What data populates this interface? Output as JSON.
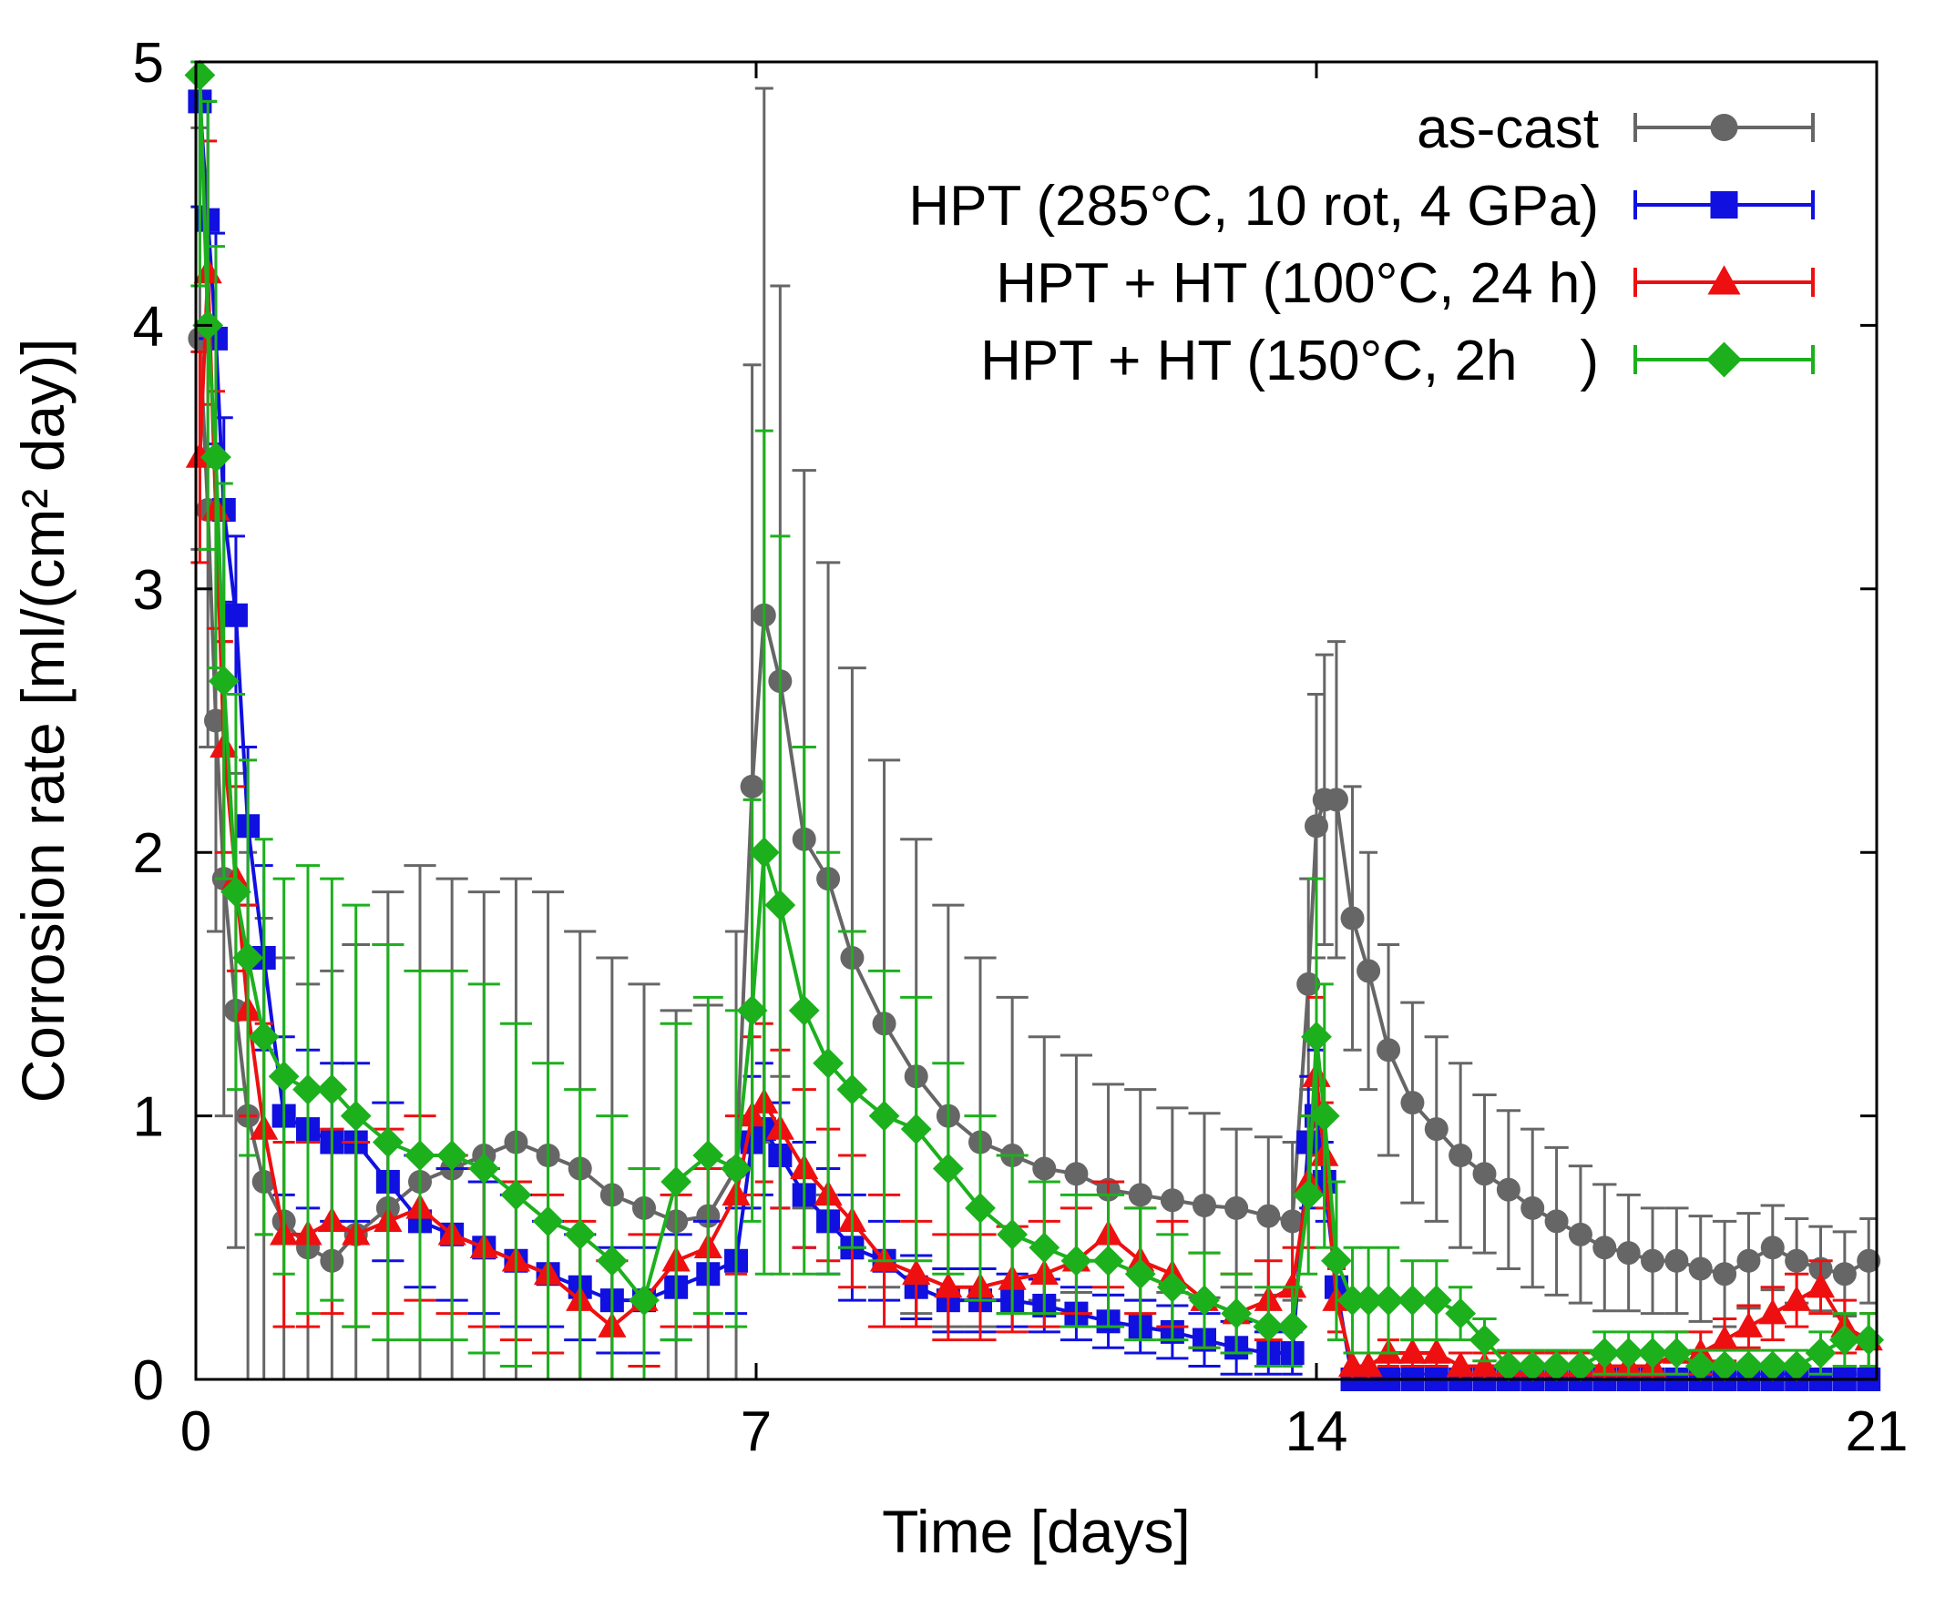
{
  "chart_data": {
    "type": "line",
    "title": "",
    "xlabel": "Time [days]",
    "ylabel": "Corrosion rate [ml/(cm² day)]",
    "xlim": [
      0,
      21
    ],
    "ylim": [
      0,
      5
    ],
    "xticks": [
      0,
      7,
      14,
      21
    ],
    "xtick_labels": [
      "0",
      "7",
      "14",
      "21"
    ],
    "yticks": [
      0,
      1,
      2,
      3,
      4,
      5
    ],
    "ytick_labels": [
      "0",
      "1",
      "2",
      "3",
      "4",
      "5"
    ],
    "grid": false,
    "legend_position": "top-right",
    "series": [
      {
        "name": "as-cast",
        "color": "#666666",
        "marker": "circle",
        "x": [
          0.05,
          0.15,
          0.25,
          0.35,
          0.5,
          0.65,
          0.85,
          1.1,
          1.4,
          1.7,
          2.0,
          2.4,
          2.8,
          3.2,
          3.6,
          4.0,
          4.4,
          4.8,
          5.2,
          5.6,
          6.0,
          6.4,
          6.75,
          6.95,
          7.1,
          7.3,
          7.6,
          7.9,
          8.2,
          8.6,
          9.0,
          9.4,
          9.8,
          10.2,
          10.6,
          11.0,
          11.4,
          11.8,
          12.2,
          12.6,
          13.0,
          13.4,
          13.7,
          13.9,
          14.0,
          14.1,
          14.25,
          14.45,
          14.65,
          14.9,
          15.2,
          15.5,
          15.8,
          16.1,
          16.4,
          16.7,
          17.0,
          17.3,
          17.6,
          17.9,
          18.2,
          18.5,
          18.8,
          19.1,
          19.4,
          19.7,
          20.0,
          20.3,
          20.6,
          20.9
        ],
        "y": [
          3.95,
          3.3,
          2.5,
          1.9,
          1.4,
          1.0,
          0.75,
          0.6,
          0.5,
          0.45,
          0.55,
          0.65,
          0.75,
          0.8,
          0.85,
          0.9,
          0.85,
          0.8,
          0.7,
          0.65,
          0.6,
          0.62,
          0.8,
          2.25,
          2.9,
          2.65,
          2.05,
          1.9,
          1.6,
          1.35,
          1.15,
          1.0,
          0.9,
          0.85,
          0.8,
          0.78,
          0.72,
          0.7,
          0.68,
          0.66,
          0.65,
          0.62,
          0.6,
          1.5,
          2.1,
          2.2,
          2.2,
          1.75,
          1.55,
          1.25,
          1.05,
          0.95,
          0.85,
          0.78,
          0.72,
          0.65,
          0.6,
          0.55,
          0.5,
          0.48,
          0.45,
          0.45,
          0.42,
          0.4,
          0.45,
          0.5,
          0.45,
          0.42,
          0.4,
          0.45
        ],
        "yerr": [
          0.8,
          0.9,
          0.8,
          0.9,
          0.9,
          1.0,
          1.0,
          1.0,
          1.0,
          1.1,
          1.1,
          1.2,
          1.2,
          1.1,
          1.0,
          1.0,
          1.0,
          0.9,
          0.9,
          0.85,
          0.8,
          0.8,
          0.9,
          1.6,
          2.0,
          1.5,
          1.4,
          1.2,
          1.1,
          1.0,
          0.9,
          0.8,
          0.7,
          0.6,
          0.5,
          0.45,
          0.4,
          0.4,
          0.35,
          0.35,
          0.3,
          0.3,
          0.3,
          0.4,
          0.5,
          0.55,
          0.6,
          0.5,
          0.45,
          0.4,
          0.38,
          0.35,
          0.35,
          0.3,
          0.3,
          0.3,
          0.28,
          0.26,
          0.24,
          0.22,
          0.2,
          0.2,
          0.2,
          0.2,
          0.18,
          0.16,
          0.16,
          0.16,
          0.16,
          0.16
        ]
      },
      {
        "name": "HPT (285°C, 10 rot, 4 GPa)",
        "color": "#1010e0",
        "marker": "square",
        "x": [
          0.05,
          0.15,
          0.25,
          0.35,
          0.5,
          0.65,
          0.85,
          1.1,
          1.4,
          1.7,
          2.0,
          2.4,
          2.8,
          3.2,
          3.6,
          4.0,
          4.4,
          4.8,
          5.2,
          5.6,
          6.0,
          6.4,
          6.75,
          6.95,
          7.1,
          7.3,
          7.6,
          7.9,
          8.2,
          8.6,
          9.0,
          9.4,
          9.8,
          10.2,
          10.6,
          11.0,
          11.4,
          11.8,
          12.2,
          12.6,
          13.0,
          13.4,
          13.7,
          13.9,
          14.0,
          14.1,
          14.25,
          14.45,
          14.65,
          14.9,
          15.2,
          15.5,
          15.8,
          16.1,
          16.4,
          16.7,
          17.0,
          17.3,
          17.6,
          17.9,
          18.2,
          18.5,
          18.8,
          19.1,
          19.4,
          19.7,
          20.0,
          20.3,
          20.6,
          20.9
        ],
        "y": [
          4.85,
          4.4,
          3.95,
          3.3,
          2.9,
          2.1,
          1.6,
          1.0,
          0.95,
          0.9,
          0.9,
          0.75,
          0.6,
          0.55,
          0.5,
          0.45,
          0.4,
          0.35,
          0.3,
          0.3,
          0.35,
          0.4,
          0.45,
          0.9,
          0.95,
          0.85,
          0.7,
          0.6,
          0.5,
          0.45,
          0.35,
          0.3,
          0.3,
          0.3,
          0.28,
          0.25,
          0.22,
          0.2,
          0.18,
          0.15,
          0.12,
          0.1,
          0.1,
          0.9,
          1.0,
          0.75,
          0.35,
          0.0,
          0.0,
          0.0,
          0.0,
          0.0,
          0.0,
          0.0,
          0.0,
          0.0,
          0.0,
          0.0,
          0.0,
          0.0,
          0.0,
          0.0,
          0.0,
          0.0,
          0.0,
          0.0,
          0.0,
          0.0,
          0.0,
          0.0
        ],
        "yerr": [
          0.4,
          0.45,
          0.4,
          0.35,
          0.3,
          0.3,
          0.35,
          0.3,
          0.3,
          0.3,
          0.3,
          0.3,
          0.25,
          0.25,
          0.25,
          0.25,
          0.2,
          0.2,
          0.2,
          0.2,
          0.2,
          0.2,
          0.2,
          0.25,
          0.25,
          0.2,
          0.2,
          0.2,
          0.2,
          0.15,
          0.12,
          0.12,
          0.12,
          0.1,
          0.1,
          0.1,
          0.1,
          0.1,
          0.1,
          0.1,
          0.1,
          0.08,
          0.08,
          0.25,
          0.25,
          0.15,
          0.08,
          0.02,
          0.02,
          0.02,
          0.02,
          0.02,
          0.02,
          0.02,
          0.02,
          0.02,
          0.02,
          0.02,
          0.02,
          0.02,
          0.02,
          0.02,
          0.02,
          0.02,
          0.02,
          0.02,
          0.02,
          0.02,
          0.02,
          0.02
        ]
      },
      {
        "name": "HPT + HT (100°C, 24 h)",
        "color": "#ee1010",
        "marker": "triangle",
        "x": [
          0.05,
          0.15,
          0.25,
          0.35,
          0.5,
          0.65,
          0.85,
          1.1,
          1.4,
          1.7,
          2.0,
          2.4,
          2.8,
          3.2,
          3.6,
          4.0,
          4.4,
          4.8,
          5.2,
          5.6,
          6.0,
          6.4,
          6.75,
          6.95,
          7.1,
          7.3,
          7.6,
          7.9,
          8.2,
          8.6,
          9.0,
          9.4,
          9.8,
          10.2,
          10.6,
          11.0,
          11.4,
          11.8,
          12.2,
          12.6,
          13.0,
          13.4,
          13.7,
          13.9,
          14.0,
          14.1,
          14.25,
          14.45,
          14.65,
          14.9,
          15.2,
          15.5,
          15.8,
          16.1,
          16.4,
          16.7,
          17.0,
          17.3,
          17.6,
          17.9,
          18.2,
          18.5,
          18.8,
          19.1,
          19.4,
          19.7,
          20.0,
          20.3,
          20.6,
          20.9
        ],
        "y": [
          3.5,
          4.2,
          3.3,
          2.4,
          1.9,
          1.4,
          0.95,
          0.55,
          0.55,
          0.6,
          0.55,
          0.6,
          0.65,
          0.55,
          0.5,
          0.45,
          0.4,
          0.3,
          0.2,
          0.3,
          0.45,
          0.5,
          0.7,
          1.0,
          1.05,
          0.95,
          0.8,
          0.7,
          0.6,
          0.45,
          0.4,
          0.35,
          0.35,
          0.38,
          0.4,
          0.45,
          0.55,
          0.45,
          0.4,
          0.3,
          0.25,
          0.3,
          0.35,
          0.75,
          1.15,
          0.85,
          0.3,
          0.05,
          0.05,
          0.1,
          0.1,
          0.1,
          0.05,
          0.05,
          0.05,
          0.05,
          0.05,
          0.05,
          0.05,
          0.05,
          0.05,
          0.1,
          0.1,
          0.15,
          0.2,
          0.25,
          0.3,
          0.35,
          0.2,
          0.15
        ],
        "yerr": [
          0.4,
          0.5,
          0.45,
          0.4,
          0.35,
          0.4,
          0.4,
          0.35,
          0.35,
          0.35,
          0.35,
          0.35,
          0.35,
          0.3,
          0.3,
          0.3,
          0.3,
          0.3,
          0.25,
          0.25,
          0.25,
          0.3,
          0.3,
          0.3,
          0.3,
          0.3,
          0.3,
          0.25,
          0.25,
          0.25,
          0.2,
          0.2,
          0.2,
          0.2,
          0.2,
          0.2,
          0.2,
          0.2,
          0.2,
          0.18,
          0.15,
          0.15,
          0.15,
          0.25,
          0.3,
          0.2,
          0.12,
          0.05,
          0.05,
          0.05,
          0.05,
          0.05,
          0.05,
          0.05,
          0.05,
          0.05,
          0.05,
          0.05,
          0.05,
          0.05,
          0.05,
          0.08,
          0.08,
          0.08,
          0.08,
          0.1,
          0.1,
          0.1,
          0.1,
          0.1
        ]
      },
      {
        "name": "HPT + HT (150°C, 2h    )",
        "color": "#1db01d",
        "marker": "diamond",
        "x": [
          0.05,
          0.15,
          0.25,
          0.35,
          0.5,
          0.65,
          0.85,
          1.1,
          1.4,
          1.7,
          2.0,
          2.4,
          2.8,
          3.2,
          3.6,
          4.0,
          4.4,
          4.8,
          5.2,
          5.6,
          6.0,
          6.4,
          6.75,
          6.95,
          7.1,
          7.3,
          7.6,
          7.9,
          8.2,
          8.6,
          9.0,
          9.4,
          9.8,
          10.2,
          10.6,
          11.0,
          11.4,
          11.8,
          12.2,
          12.6,
          13.0,
          13.4,
          13.7,
          13.9,
          14.0,
          14.1,
          14.25,
          14.45,
          14.65,
          14.9,
          15.2,
          15.5,
          15.8,
          16.1,
          16.4,
          16.7,
          17.0,
          17.3,
          17.6,
          17.9,
          18.2,
          18.5,
          18.8,
          19.1,
          19.4,
          19.7,
          20.0,
          20.3,
          20.6,
          20.9
        ],
        "y": [
          4.95,
          4.0,
          3.5,
          2.65,
          1.85,
          1.6,
          1.3,
          1.15,
          1.1,
          1.1,
          1.0,
          0.9,
          0.85,
          0.85,
          0.8,
          0.7,
          0.6,
          0.55,
          0.45,
          0.3,
          0.75,
          0.85,
          0.8,
          1.4,
          2.0,
          1.8,
          1.4,
          1.2,
          1.1,
          1.0,
          0.95,
          0.8,
          0.65,
          0.55,
          0.5,
          0.45,
          0.45,
          0.4,
          0.35,
          0.3,
          0.25,
          0.2,
          0.2,
          0.7,
          1.3,
          1.0,
          0.45,
          0.3,
          0.3,
          0.3,
          0.3,
          0.3,
          0.25,
          0.15,
          0.05,
          0.05,
          0.05,
          0.05,
          0.1,
          0.1,
          0.1,
          0.1,
          0.05,
          0.05,
          0.05,
          0.05,
          0.05,
          0.1,
          0.15,
          0.15
        ],
        "yerr": [
          0.8,
          0.85,
          0.8,
          0.75,
          0.75,
          0.75,
          0.75,
          0.75,
          0.85,
          0.8,
          0.8,
          0.75,
          0.7,
          0.7,
          0.7,
          0.65,
          0.6,
          0.55,
          0.55,
          0.5,
          0.6,
          0.6,
          0.6,
          0.8,
          1.6,
          1.4,
          1.0,
          0.8,
          0.6,
          0.55,
          0.5,
          0.4,
          0.35,
          0.3,
          0.25,
          0.25,
          0.25,
          0.25,
          0.2,
          0.18,
          0.15,
          0.15,
          0.15,
          0.3,
          0.6,
          0.5,
          0.3,
          0.2,
          0.2,
          0.2,
          0.15,
          0.15,
          0.1,
          0.08,
          0.06,
          0.06,
          0.06,
          0.06,
          0.08,
          0.08,
          0.08,
          0.08,
          0.06,
          0.06,
          0.06,
          0.06,
          0.06,
          0.08,
          0.1,
          0.1
        ]
      }
    ]
  }
}
